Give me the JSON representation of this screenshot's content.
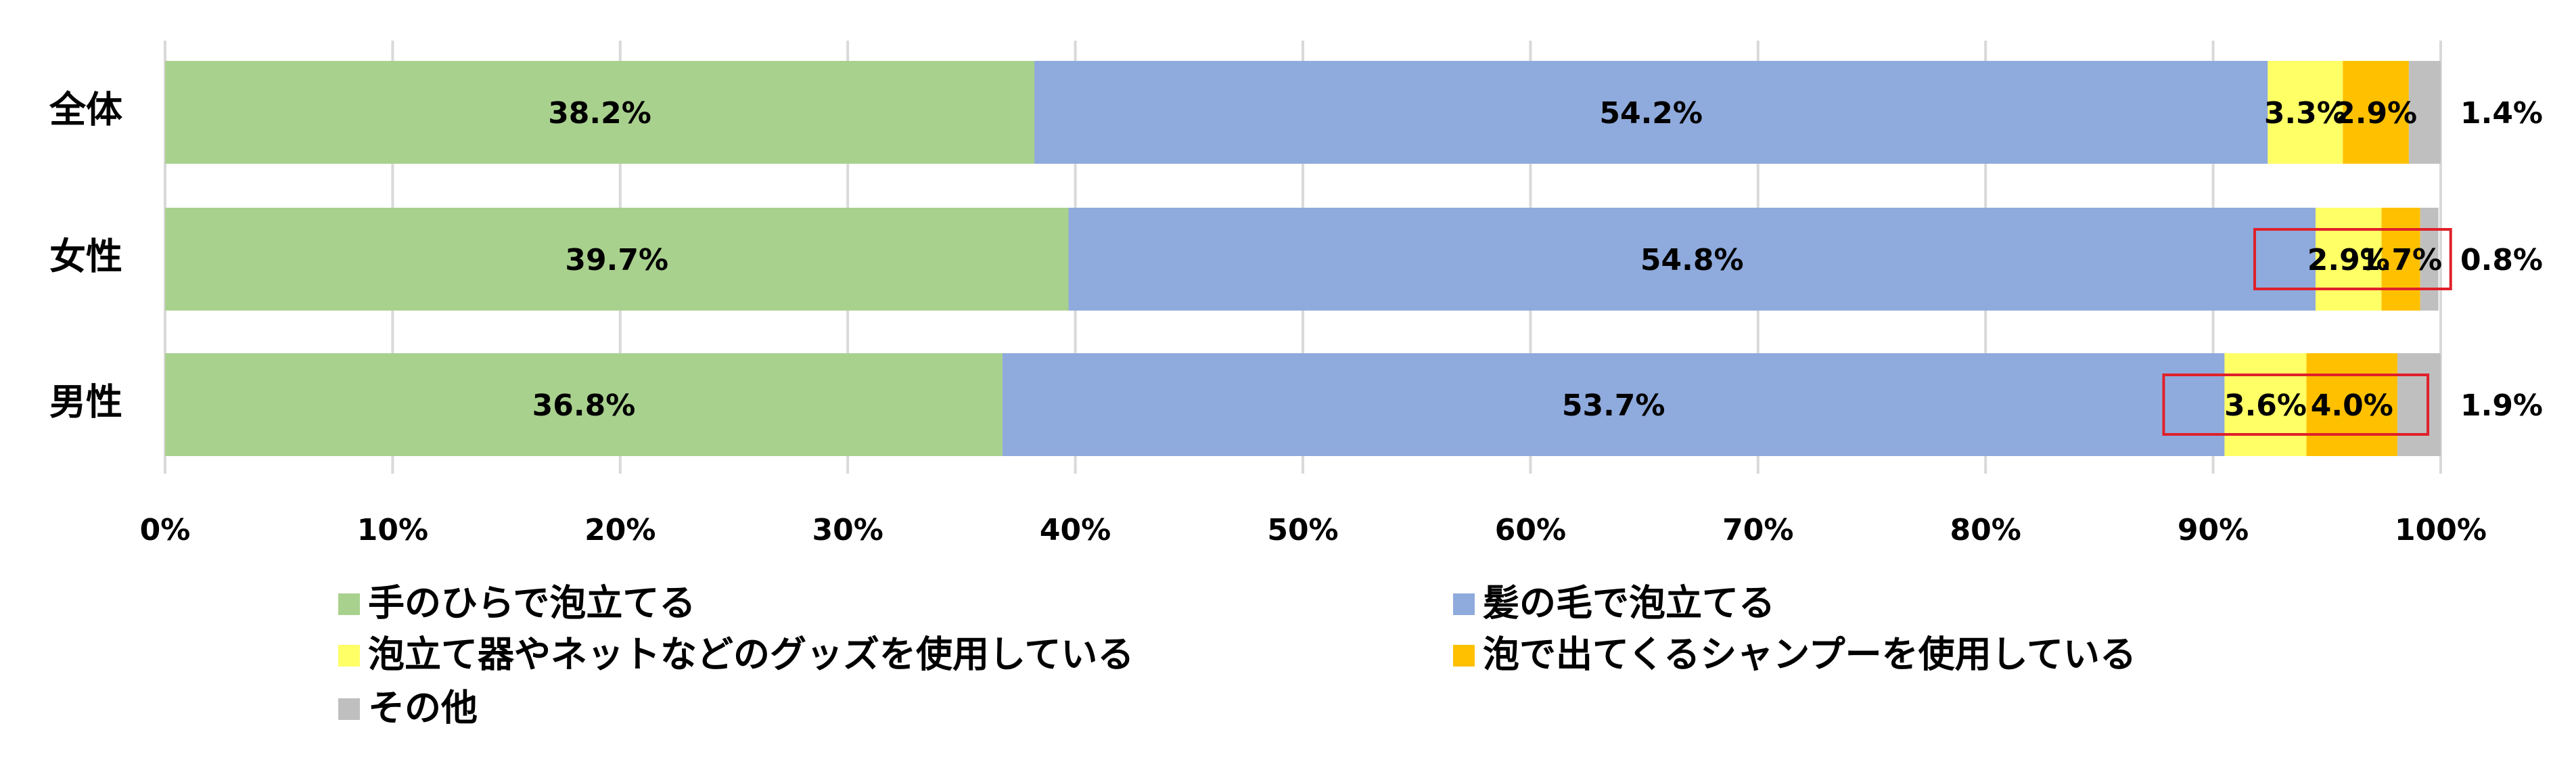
{
  "chart_data": {
    "type": "stacked_bar_horizontal",
    "categories": [
      "全体",
      "女性",
      "男性"
    ],
    "series": [
      {
        "name": "手のひらで泡立てる",
        "color": "#a9d18e",
        "values": [
          38.2,
          39.7,
          36.8
        ],
        "value_labels": [
          "38.2%",
          "39.7%",
          "36.8%"
        ]
      },
      {
        "name": "髪の毛で泡立てる",
        "color": "#8faadc",
        "values": [
          54.2,
          54.8,
          53.7
        ],
        "value_labels": [
          "54.2%",
          "54.8%",
          "53.7%"
        ]
      },
      {
        "name": "泡立て器やネットなどのグッズを使用している",
        "color": "#ffff66",
        "values": [
          3.3,
          2.9,
          3.6
        ],
        "value_labels": [
          "3.3%",
          "2.9%",
          "3.6%"
        ]
      },
      {
        "name": "泡で出てくるシャンプーを使用している",
        "color": "#ffc000",
        "values": [
          2.9,
          1.7,
          4.0
        ],
        "value_labels": [
          "2.9%",
          "1.7%",
          "4.0%"
        ]
      },
      {
        "name": "その他",
        "color": "#bfbfbf",
        "values": [
          1.4,
          0.8,
          1.9
        ],
        "value_labels": [
          "1.4%",
          "0.8%",
          "1.9%"
        ]
      }
    ],
    "xlim": [
      0,
      100
    ],
    "xticks": [
      {
        "value": 0,
        "label": "0%"
      },
      {
        "value": 10,
        "label": "10%"
      },
      {
        "value": 20,
        "label": "20%"
      },
      {
        "value": 30,
        "label": "30%"
      },
      {
        "value": 40,
        "label": "40%"
      },
      {
        "value": 50,
        "label": "50%"
      },
      {
        "value": 60,
        "label": "60%"
      },
      {
        "value": 70,
        "label": "70%"
      },
      {
        "value": 80,
        "label": "80%"
      },
      {
        "value": 90,
        "label": "90%"
      },
      {
        "value": 100,
        "label": "100%"
      }
    ],
    "grid": true
  }
}
